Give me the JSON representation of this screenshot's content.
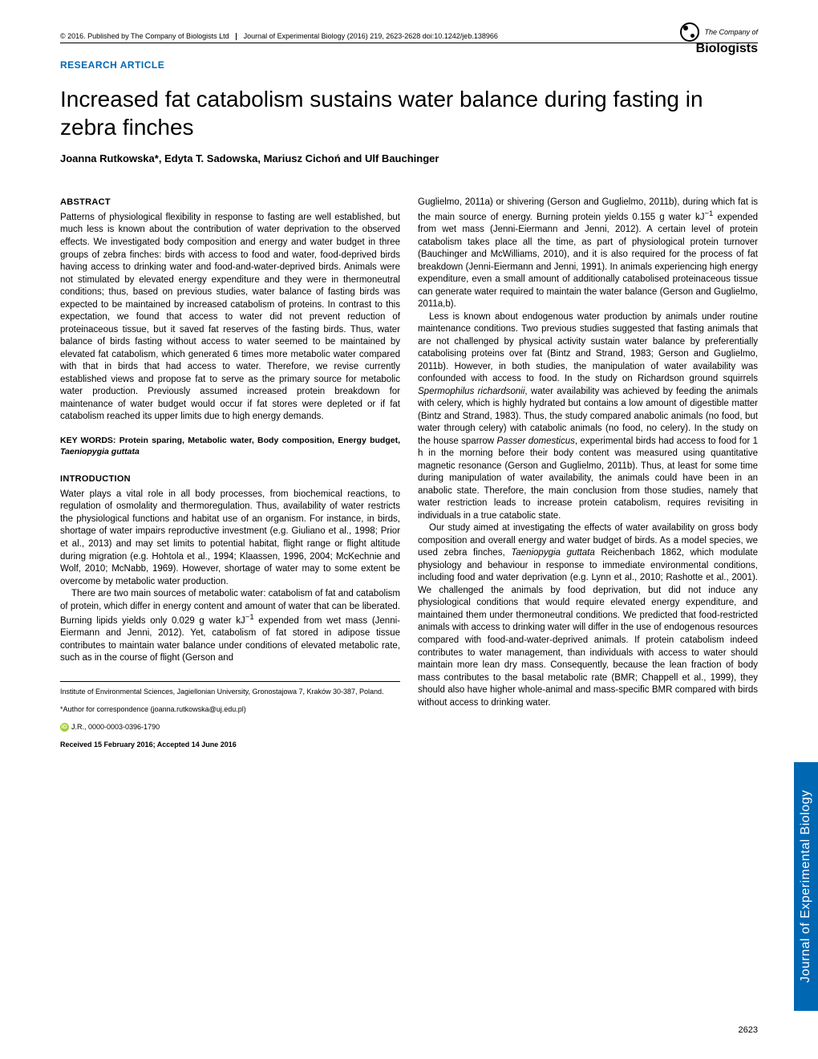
{
  "header": {
    "copyright": "© 2016. Published by The Company of Biologists Ltd",
    "journal": "Journal of Experimental Biology (2016) 219, 2623-2628 doi:10.1242/jeb.138966"
  },
  "logo": {
    "top": "The Company of",
    "bottom": "Biologists"
  },
  "articleType": "RESEARCH ARTICLE",
  "title": "Increased fat catabolism sustains water balance during fasting in zebra finches",
  "authors": "Joanna Rutkowska*, Edyta T. Sadowska, Mariusz Cichoń and Ulf Bauchinger",
  "abstract": {
    "heading": "ABSTRACT",
    "text": "Patterns of physiological flexibility in response to fasting are well established, but much less is known about the contribution of water deprivation to the observed effects. We investigated body composition and energy and water budget in three groups of zebra finches: birds with access to food and water, food-deprived birds having access to drinking water and food-and-water-deprived birds. Animals were not stimulated by elevated energy expenditure and they were in thermoneutral conditions; thus, based on previous studies, water balance of fasting birds was expected to be maintained by increased catabolism of proteins. In contrast to this expectation, we found that access to water did not prevent reduction of proteinaceous tissue, but it saved fat reserves of the fasting birds. Thus, water balance of birds fasting without access to water seemed to be maintained by elevated fat catabolism, which generated 6 times more metabolic water compared with that in birds that had access to water. Therefore, we revise currently established views and propose fat to serve as the primary source for metabolic water production. Previously assumed increased protein breakdown for maintenance of water budget would occur if fat stores were depleted or if fat catabolism reached its upper limits due to high energy demands."
  },
  "keywords": {
    "label": "KEY WORDS: Protein sparing, Metabolic water, Body composition, Energy budget, ",
    "species": "Taeniopygia guttata"
  },
  "introduction": {
    "heading": "INTRODUCTION",
    "para1": "Water plays a vital role in all body processes, from biochemical reactions, to regulation of osmolality and thermoregulation. Thus, availability of water restricts the physiological functions and habitat use of an organism. For instance, in birds, shortage of water impairs reproductive investment (e.g. Giuliano et al., 1998; Prior et al., 2013) and may set limits to potential habitat, flight range or flight altitude during migration (e.g. Hohtola et al., 1994; Klaassen, 1996, 2004; McKechnie and Wolf, 2010; McNabb, 1969). However, shortage of water may to some extent be overcome by metabolic water production.",
    "para2a": "There are two main sources of metabolic water: catabolism of fat and catabolism of protein, which differ in energy content and amount of water that can be liberated. Burning lipids yields only 0.029 g water kJ",
    "para2b": " expended from wet mass (Jenni-Eiermann and Jenni, 2012). Yet, catabolism of fat stored in adipose tissue contributes to maintain water balance under conditions of elevated metabolic rate, such as in the course of flight (Gerson and"
  },
  "rightColumn": {
    "para1a": "Guglielmo, 2011a) or shivering (Gerson and Guglielmo, 2011b), during which fat is the main source of energy. Burning protein yields 0.155 g water kJ",
    "para1b": " expended from wet mass (Jenni-Eiermann and Jenni, 2012). A certain level of protein catabolism takes place all the time, as part of physiological protein turnover (Bauchinger and McWilliams, 2010), and it is also required for the process of fat breakdown (Jenni-Eiermann and Jenni, 1991). In animals experiencing high energy expenditure, even a small amount of additionally catabolised proteinaceous tissue can generate water required to maintain the water balance (Gerson and Guglielmo, 2011a,b).",
    "para2a": "Less is known about endogenous water production by animals under routine maintenance conditions. Two previous studies suggested that fasting animals that are not challenged by physical activity sustain water balance by preferentially catabolising proteins over fat (Bintz and Strand, 1983; Gerson and Guglielmo, 2011b). However, in both studies, the manipulation of water availability was confounded with access to food. In the study on Richardson ground squirrels ",
    "species1": "Spermophilus richardsonii",
    "para2b": ", water availability was achieved by feeding the animals with celery, which is highly hydrated but contains a low amount of digestible matter (Bintz and Strand, 1983). Thus, the study compared anabolic animals (no food, but water through celery) with catabolic animals (no food, no celery). In the study on the house sparrow ",
    "species2": "Passer domesticus",
    "para2c": ", experimental birds had access to food for 1 h in the morning before their body content was measured using quantitative magnetic resonance (Gerson and Guglielmo, 2011b). Thus, at least for some time during manipulation of water availability, the animals could have been in an anabolic state. Therefore, the main conclusion from those studies, namely that water restriction leads to increase protein catabolism, requires revisiting in individuals in a true catabolic state.",
    "para3a": "Our study aimed at investigating the effects of water availability on gross body composition and overall energy and water budget of birds. As a model species, we used zebra finches, ",
    "species3": "Taeniopygia guttata",
    "para3b": " Reichenbach 1862, which modulate physiology and behaviour in response to immediate environmental conditions, including food and water deprivation (e.g. Lynn et al., 2010; Rashotte et al., 2001). We challenged the animals by food deprivation, but did not induce any physiological conditions that would require elevated energy expenditure, and maintained them under thermoneutral conditions. We predicted that food-restricted animals with access to drinking water will differ in the use of endogenous resources compared with food-and-water-deprived animals. If protein catabolism indeed contributes to water management, than individuals with access to water should maintain more lean dry mass. Consequently, because the lean fraction of body mass contributes to the basal metabolic rate (BMR; Chappell et al., 1999), they should also have higher whole-animal and mass-specific BMR compared with birds without access to drinking water."
  },
  "footer": {
    "affiliation": "Institute of Environmental Sciences, Jagiellonian University, Gronostajowa 7, Kraków 30-387, Poland.",
    "correspondence": "*Author for correspondence (joanna.rutkowska@uj.edu.pl)",
    "orcid": "J.R., 0000-0003-0396-1790",
    "dates": "Received 15 February 2016; Accepted 14 June 2016"
  },
  "sideTab": "Journal of Experimental Biology",
  "pageNumber": "2623",
  "colors": {
    "accent": "#0068b3",
    "orcid": "#a6ce39",
    "text": "#000000",
    "background": "#ffffff"
  }
}
